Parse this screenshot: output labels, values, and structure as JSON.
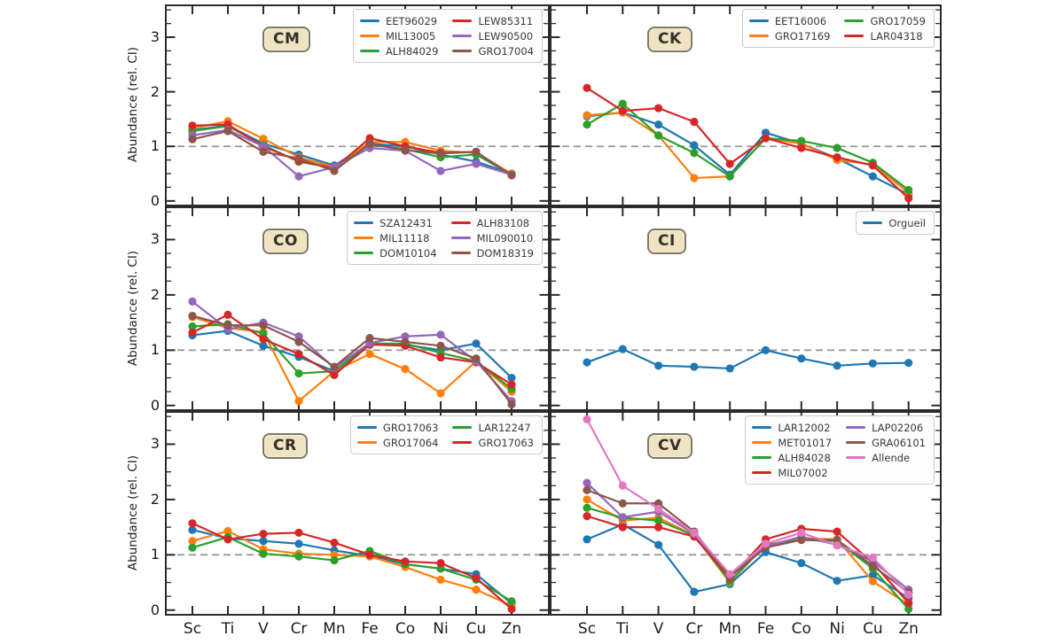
{
  "figure": {
    "ylabel": "Abundance (rel. CI)",
    "elements": [
      "Sc",
      "Ti",
      "V",
      "Cr",
      "Mn",
      "Fe",
      "Co",
      "Ni",
      "Cu",
      "Zn"
    ],
    "y_tick_labels": [
      "0",
      "1",
      "2",
      "3"
    ],
    "spine_color": "#2b2b2b",
    "reference_line_color": "#999999",
    "panel_label_bg": "#f0e3c2",
    "panel_label_border": "#5a5546"
  },
  "chart_data": [
    {
      "type": "line",
      "title": "CM",
      "categories": [
        "Sc",
        "Ti",
        "V",
        "Cr",
        "Mn",
        "Fe",
        "Co",
        "Ni",
        "Cu",
        "Zn"
      ],
      "ylabel": "Abundance (rel. CI)",
      "ylim": [
        -0.1,
        3.6
      ],
      "yticks": [
        0,
        1,
        2,
        3
      ],
      "reference_line_y": 1.0,
      "legend_position": "upper right",
      "legend_ncols": 2,
      "series": [
        {
          "name": "EET96029",
          "color": "#1f77b4",
          "values": [
            1.3,
            1.38,
            1.05,
            0.85,
            0.65,
            1.05,
            1.0,
            0.85,
            0.72,
            0.5
          ]
        },
        {
          "name": "MIL13005",
          "color": "#ff7f0e",
          "values": [
            1.33,
            1.46,
            1.14,
            0.8,
            0.62,
            1.08,
            1.08,
            0.92,
            0.88,
            0.5
          ]
        },
        {
          "name": "ALH84029",
          "color": "#2ca02c",
          "values": [
            1.28,
            1.37,
            1.02,
            0.72,
            0.6,
            1.03,
            0.95,
            0.8,
            0.85,
            0.48
          ]
        },
        {
          "name": "LEW85311",
          "color": "#d62728",
          "values": [
            1.38,
            1.4,
            1.0,
            0.73,
            0.6,
            1.15,
            1.0,
            0.88,
            0.9,
            0.47
          ]
        },
        {
          "name": "LEW90500",
          "color": "#9467bd",
          "values": [
            1.2,
            1.3,
            1.0,
            0.45,
            0.62,
            0.97,
            0.92,
            0.55,
            0.68,
            0.48
          ]
        },
        {
          "name": "GRO17004",
          "color": "#8c564b",
          "values": [
            1.13,
            1.28,
            0.9,
            0.78,
            0.55,
            1.05,
            0.93,
            0.87,
            0.9,
            0.47
          ]
        }
      ]
    },
    {
      "type": "line",
      "title": "CK",
      "categories": [
        "Sc",
        "Ti",
        "V",
        "Cr",
        "Mn",
        "Fe",
        "Co",
        "Ni",
        "Cu",
        "Zn"
      ],
      "ylabel": "Abundance (rel. CI)",
      "ylim": [
        -0.1,
        3.6
      ],
      "yticks": [
        0,
        1,
        2,
        3
      ],
      "reference_line_y": 1.0,
      "legend_position": "upper right",
      "legend_ncols": 2,
      "series": [
        {
          "name": "EET16006",
          "color": "#1f77b4",
          "values": [
            1.55,
            1.62,
            1.4,
            1.02,
            0.48,
            1.25,
            1.05,
            0.78,
            0.45,
            0.12
          ]
        },
        {
          "name": "GRO17169",
          "color": "#ff7f0e",
          "values": [
            1.57,
            1.62,
            1.2,
            0.42,
            0.45,
            1.15,
            1.05,
            0.75,
            0.67,
            0.15
          ]
        },
        {
          "name": "GRO17059",
          "color": "#2ca02c",
          "values": [
            1.4,
            1.78,
            1.2,
            0.88,
            0.45,
            1.15,
            1.1,
            0.97,
            0.7,
            0.2
          ]
        },
        {
          "name": "LAR04318",
          "color": "#d62728",
          "values": [
            2.07,
            1.65,
            1.7,
            1.45,
            0.68,
            1.15,
            0.97,
            0.8,
            0.65,
            0.05
          ]
        }
      ]
    },
    {
      "type": "line",
      "title": "CO",
      "categories": [
        "Sc",
        "Ti",
        "V",
        "Cr",
        "Mn",
        "Fe",
        "Co",
        "Ni",
        "Cu",
        "Zn"
      ],
      "ylabel": "Abundance (rel. CI)",
      "ylim": [
        -0.1,
        3.6
      ],
      "yticks": [
        0,
        1,
        2,
        3
      ],
      "reference_line_y": 1.0,
      "legend_position": "upper right",
      "legend_ncols": 2,
      "series": [
        {
          "name": "SZA12431",
          "color": "#1f77b4",
          "values": [
            1.27,
            1.35,
            1.08,
            0.88,
            0.62,
            1.1,
            1.1,
            1.0,
            1.12,
            0.5
          ]
        },
        {
          "name": "MIL11118",
          "color": "#ff7f0e",
          "values": [
            1.6,
            1.4,
            1.33,
            0.08,
            0.62,
            0.93,
            0.66,
            0.22,
            0.8,
            0.25
          ]
        },
        {
          "name": "DOM10104",
          "color": "#2ca02c",
          "values": [
            1.43,
            1.47,
            1.3,
            0.58,
            0.62,
            1.12,
            1.12,
            0.95,
            0.8,
            0.3
          ]
        },
        {
          "name": "ALH83108",
          "color": "#d62728",
          "values": [
            1.32,
            1.64,
            1.2,
            0.93,
            0.55,
            1.1,
            1.08,
            0.87,
            0.78,
            0.38
          ]
        },
        {
          "name": "MIL090010",
          "color": "#9467bd",
          "values": [
            1.88,
            1.38,
            1.5,
            1.25,
            0.68,
            1.13,
            1.25,
            1.28,
            0.8,
            0.08
          ]
        },
        {
          "name": "DOM18319",
          "color": "#8c564b",
          "values": [
            1.62,
            1.45,
            1.45,
            1.15,
            0.7,
            1.22,
            1.15,
            1.08,
            0.85,
            0.02
          ]
        }
      ]
    },
    {
      "type": "line",
      "title": "CI",
      "categories": [
        "Sc",
        "Ti",
        "V",
        "Cr",
        "Mn",
        "Fe",
        "Co",
        "Ni",
        "Cu",
        "Zn"
      ],
      "ylabel": "Abundance (rel. CI)",
      "ylim": [
        -0.1,
        3.6
      ],
      "yticks": [
        0,
        1,
        2,
        3
      ],
      "reference_line_y": 1.0,
      "legend_position": "upper right",
      "legend_ncols": 1,
      "series": [
        {
          "name": "Orgueil",
          "color": "#1f77b4",
          "values": [
            0.78,
            1.02,
            0.72,
            0.7,
            0.67,
            1.0,
            0.85,
            0.72,
            0.76,
            0.77
          ]
        }
      ]
    },
    {
      "type": "line",
      "title": "CR",
      "categories": [
        "Sc",
        "Ti",
        "V",
        "Cr",
        "Mn",
        "Fe",
        "Co",
        "Ni",
        "Cu",
        "Zn"
      ],
      "ylabel": "Abundance (rel. CI)",
      "ylim": [
        -0.1,
        3.6
      ],
      "yticks": [
        0,
        1,
        2,
        3
      ],
      "reference_line_y": 1.0,
      "legend_position": "upper right",
      "legend_ncols": 2,
      "series": [
        {
          "name": "GRO17063",
          "color": "#1f77b4",
          "values": [
            1.45,
            1.3,
            1.25,
            1.2,
            1.08,
            0.98,
            0.83,
            0.75,
            0.65,
            0.12
          ]
        },
        {
          "name": "GRO17064",
          "color": "#ff7f0e",
          "values": [
            1.25,
            1.43,
            1.1,
            1.02,
            1.0,
            0.97,
            0.78,
            0.55,
            0.37,
            0.08
          ]
        },
        {
          "name": "LAR12247",
          "color": "#2ca02c",
          "values": [
            1.13,
            1.32,
            1.02,
            0.97,
            0.9,
            1.07,
            0.83,
            0.75,
            0.55,
            0.16
          ]
        },
        {
          "name": "GRO17063",
          "color": "#d62728",
          "values": [
            1.57,
            1.28,
            1.38,
            1.4,
            1.22,
            1.0,
            0.88,
            0.85,
            0.58,
            0.02
          ]
        }
      ]
    },
    {
      "type": "line",
      "title": "CV",
      "categories": [
        "Sc",
        "Ti",
        "V",
        "Cr",
        "Mn",
        "Fe",
        "Co",
        "Ni",
        "Cu",
        "Zn"
      ],
      "ylabel": "Abundance (rel. CI)",
      "ylim": [
        -0.1,
        3.6
      ],
      "yticks": [
        0,
        1,
        2,
        3
      ],
      "reference_line_y": 1.0,
      "legend_position": "upper right",
      "legend_ncols": 2,
      "series": [
        {
          "name": "LAR12002",
          "color": "#1f77b4",
          "values": [
            1.28,
            1.55,
            1.18,
            0.33,
            0.47,
            1.05,
            0.85,
            0.53,
            0.63,
            0.22
          ]
        },
        {
          "name": "MET01017",
          "color": "#ff7f0e",
          "values": [
            2.0,
            1.62,
            1.67,
            1.35,
            0.5,
            1.18,
            1.3,
            1.28,
            0.52,
            0.1
          ]
        },
        {
          "name": "ALH84028",
          "color": "#2ca02c",
          "values": [
            1.85,
            1.67,
            1.62,
            1.35,
            0.52,
            1.18,
            1.27,
            1.25,
            0.75,
            0.02
          ]
        },
        {
          "name": "MIL07002",
          "color": "#d62728",
          "values": [
            1.7,
            1.5,
            1.5,
            1.33,
            0.58,
            1.28,
            1.47,
            1.42,
            0.85,
            0.13
          ]
        },
        {
          "name": "LAP02206",
          "color": "#9467bd",
          "values": [
            2.3,
            1.68,
            1.78,
            1.38,
            0.62,
            1.15,
            1.33,
            1.18,
            0.88,
            0.37
          ]
        },
        {
          "name": "GRA06101",
          "color": "#8c564b",
          "values": [
            2.17,
            1.93,
            1.93,
            1.42,
            0.6,
            1.13,
            1.27,
            1.27,
            0.8,
            0.32
          ]
        },
        {
          "name": "Allende",
          "color": "#e377c2",
          "values": [
            3.45,
            2.25,
            1.83,
            1.4,
            0.65,
            1.2,
            1.4,
            1.17,
            0.95,
            0.28
          ]
        }
      ]
    }
  ]
}
